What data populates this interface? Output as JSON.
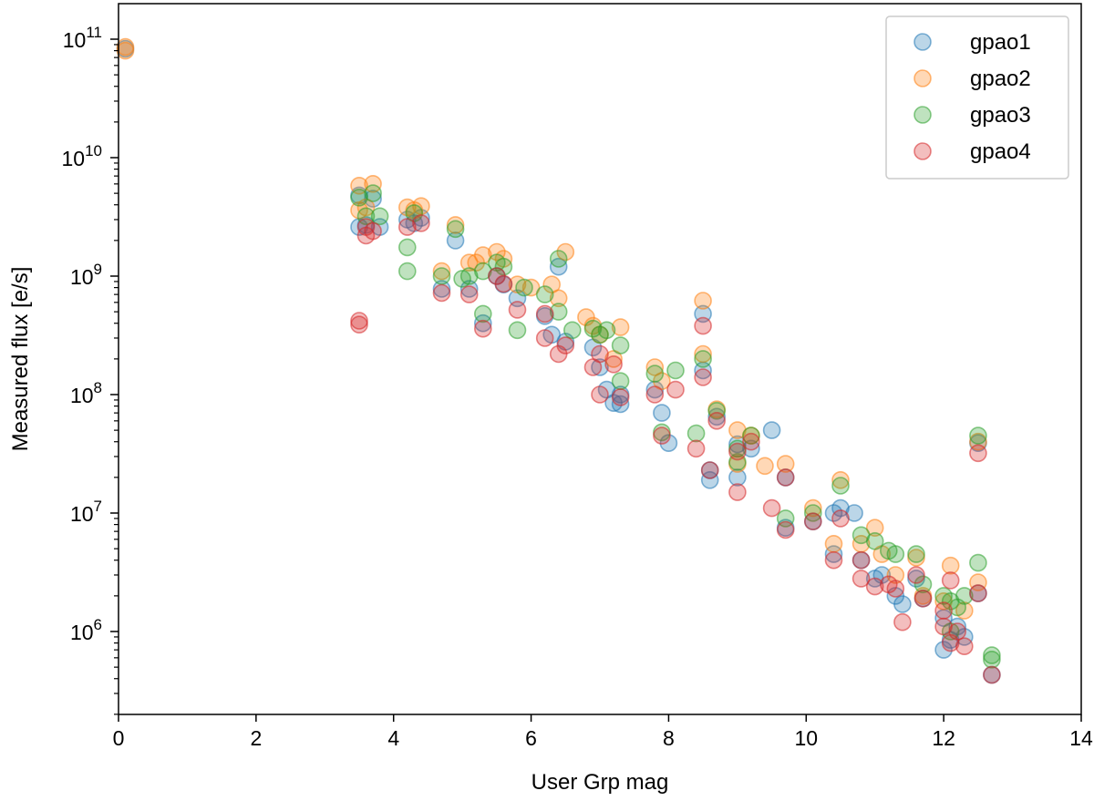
{
  "chart_data": {
    "type": "scatter",
    "title": "",
    "xlabel": "User Grp mag",
    "ylabel": "Measured flux [e/s]",
    "xlim": [
      0,
      14
    ],
    "ylim_log10": [
      5.3,
      11.3
    ],
    "yscale": "log",
    "legend_position": "top-right",
    "x_ticks": [
      {
        "value": 0,
        "label": "0"
      },
      {
        "value": 2,
        "label": "2"
      },
      {
        "value": 4,
        "label": "4"
      },
      {
        "value": 6,
        "label": "6"
      },
      {
        "value": 8,
        "label": "8"
      },
      {
        "value": 10,
        "label": "10"
      },
      {
        "value": 12,
        "label": "12"
      },
      {
        "value": 14,
        "label": "14"
      }
    ],
    "y_ticks": [
      {
        "log10": 6,
        "base": "10",
        "exp": "6"
      },
      {
        "log10": 7,
        "base": "10",
        "exp": "7"
      },
      {
        "log10": 8,
        "base": "10",
        "exp": "8"
      },
      {
        "log10": 9,
        "base": "10",
        "exp": "9"
      },
      {
        "log10": 10,
        "base": "10",
        "exp": "10"
      },
      {
        "log10": 11,
        "base": "10",
        "exp": "11"
      }
    ],
    "series": [
      {
        "name": "gpao1",
        "color": "#1f77b4",
        "points": [
          [
            0.1,
            83000000000.0
          ],
          [
            3.5,
            4800000000.0
          ],
          [
            3.5,
            2600000000.0
          ],
          [
            3.6,
            2700000000.0
          ],
          [
            3.7,
            4500000000.0
          ],
          [
            3.8,
            2600000000.0
          ],
          [
            4.2,
            3000000000.0
          ],
          [
            4.3,
            2800000000.0
          ],
          [
            4.4,
            3100000000.0
          ],
          [
            4.9,
            2000000000.0
          ],
          [
            4.7,
            780000000.0
          ],
          [
            5.1,
            780000000.0
          ],
          [
            5.3,
            400000000.0
          ],
          [
            5.5,
            1000000000.0
          ],
          [
            5.6,
            850000000.0
          ],
          [
            5.8,
            650000000.0
          ],
          [
            6.2,
            460000000.0
          ],
          [
            6.3,
            320000000.0
          ],
          [
            6.4,
            1200000000.0
          ],
          [
            6.5,
            280000000.0
          ],
          [
            6.9,
            250000000.0
          ],
          [
            7.0,
            170000000.0
          ],
          [
            7.1,
            110000000.0
          ],
          [
            7.2,
            85000000.0
          ],
          [
            7.3,
            83000000.0
          ],
          [
            7.3,
            100000000.0
          ],
          [
            7.8,
            110000000.0
          ],
          [
            7.9,
            70000000.0
          ],
          [
            8.0,
            39000000.0
          ],
          [
            8.5,
            480000000.0
          ],
          [
            8.5,
            160000000.0
          ],
          [
            8.6,
            19000000.0
          ],
          [
            8.6,
            23000000.0
          ],
          [
            8.7,
            65000000.0
          ],
          [
            9.0,
            20000000.0
          ],
          [
            9.0,
            38000000.0
          ],
          [
            9.2,
            35000000.0
          ],
          [
            9.5,
            50000000.0
          ],
          [
            9.7,
            7500000.0
          ],
          [
            9.7,
            20000000.0
          ],
          [
            10.1,
            8500000.0
          ],
          [
            10.4,
            10000000.0
          ],
          [
            10.5,
            11000000.0
          ],
          [
            10.4,
            4500000.0
          ],
          [
            10.7,
            10000000.0
          ],
          [
            10.8,
            4000000.0
          ],
          [
            11.0,
            2800000.0
          ],
          [
            11.1,
            3000000.0
          ],
          [
            11.3,
            2000000.0
          ],
          [
            11.4,
            1700000.0
          ],
          [
            11.6,
            2800000.0
          ],
          [
            11.7,
            1900000.0
          ],
          [
            12.0,
            700000.0
          ],
          [
            12.0,
            1300000.0
          ],
          [
            12.1,
            850000.0
          ],
          [
            12.2,
            1100000.0
          ],
          [
            12.3,
            900000.0
          ],
          [
            12.5,
            39000000.0
          ],
          [
            12.5,
            2100000.0
          ],
          [
            12.7,
            430000.0
          ]
        ]
      },
      {
        "name": "gpao2",
        "color": "#ff7f0e",
        "points": [
          [
            0.1,
            80000000000.0
          ],
          [
            0.1,
            86000000000.0
          ],
          [
            3.5,
            5800000000.0
          ],
          [
            3.6,
            3800000000.0
          ],
          [
            3.7,
            6000000000.0
          ],
          [
            3.5,
            3600000000.0
          ],
          [
            4.2,
            3800000000.0
          ],
          [
            4.3,
            3600000000.0
          ],
          [
            4.4,
            3900000000.0
          ],
          [
            4.9,
            2700000000.0
          ],
          [
            4.7,
            1100000000.0
          ],
          [
            5.1,
            1300000000.0
          ],
          [
            5.2,
            1300000000.0
          ],
          [
            5.3,
            1500000000.0
          ],
          [
            5.5,
            1600000000.0
          ],
          [
            5.6,
            1400000000.0
          ],
          [
            5.8,
            850000000.0
          ],
          [
            6.0,
            800000000.0
          ],
          [
            6.3,
            850000000.0
          ],
          [
            6.4,
            650000000.0
          ],
          [
            6.5,
            1600000000.0
          ],
          [
            6.8,
            450000000.0
          ],
          [
            6.9,
            380000000.0
          ],
          [
            7.0,
            320000000.0
          ],
          [
            7.3,
            370000000.0
          ],
          [
            7.2,
            200000000.0
          ],
          [
            7.8,
            170000000.0
          ],
          [
            7.9,
            130000000.0
          ],
          [
            8.5,
            620000000.0
          ],
          [
            8.5,
            220000000.0
          ],
          [
            8.7,
            75000000.0
          ],
          [
            9.0,
            50000000.0
          ],
          [
            9.0,
            26000000.0
          ],
          [
            9.2,
            45000000.0
          ],
          [
            9.4,
            25000000.0
          ],
          [
            9.7,
            26000000.0
          ],
          [
            10.1,
            11000000.0
          ],
          [
            10.4,
            5500000.0
          ],
          [
            10.5,
            19000000.0
          ],
          [
            10.8,
            5500000.0
          ],
          [
            11.0,
            7500000.0
          ],
          [
            11.1,
            4500000.0
          ],
          [
            11.3,
            3000000.0
          ],
          [
            11.6,
            4200000.0
          ],
          [
            11.7,
            2000000.0
          ],
          [
            12.1,
            3600000.0
          ],
          [
            12.0,
            1800000.0
          ],
          [
            12.3,
            1500000.0
          ],
          [
            12.5,
            2600000.0
          ],
          [
            12.5,
            40000000.0
          ]
        ]
      },
      {
        "name": "gpao3",
        "color": "#2ca02c",
        "points": [
          [
            3.5,
            4600000000.0
          ],
          [
            3.6,
            3200000000.0
          ],
          [
            3.7,
            5000000000.0
          ],
          [
            3.8,
            3200000000.0
          ],
          [
            4.2,
            1100000000.0
          ],
          [
            4.2,
            1750000000.0
          ],
          [
            4.3,
            3400000000.0
          ],
          [
            4.9,
            2500000000.0
          ],
          [
            4.7,
            1000000000.0
          ],
          [
            5.0,
            950000000.0
          ],
          [
            5.1,
            1000000000.0
          ],
          [
            5.3,
            480000000.0
          ],
          [
            5.3,
            1100000000.0
          ],
          [
            5.5,
            1300000000.0
          ],
          [
            5.6,
            1200000000.0
          ],
          [
            5.8,
            350000000.0
          ],
          [
            5.9,
            800000000.0
          ],
          [
            6.2,
            700000000.0
          ],
          [
            6.4,
            1400000000.0
          ],
          [
            6.4,
            500000000.0
          ],
          [
            6.6,
            350000000.0
          ],
          [
            6.9,
            360000000.0
          ],
          [
            7.0,
            320000000.0
          ],
          [
            7.1,
            350000000.0
          ],
          [
            7.3,
            260000000.0
          ],
          [
            7.3,
            130000000.0
          ],
          [
            7.8,
            150000000.0
          ],
          [
            7.9,
            48000000.0
          ],
          [
            8.1,
            160000000.0
          ],
          [
            8.4,
            47000000.0
          ],
          [
            8.5,
            200000000.0
          ],
          [
            8.7,
            73000000.0
          ],
          [
            9.0,
            35000000.0
          ],
          [
            9.2,
            45000000.0
          ],
          [
            9.0,
            27000000.0
          ],
          [
            9.7,
            9000000.0
          ],
          [
            10.1,
            10000000.0
          ],
          [
            10.5,
            17000000.0
          ],
          [
            10.8,
            6500000.0
          ],
          [
            11.0,
            5800000.0
          ],
          [
            11.2,
            4800000.0
          ],
          [
            11.3,
            4500000.0
          ],
          [
            11.6,
            4500000.0
          ],
          [
            11.7,
            2500000.0
          ],
          [
            12.0,
            2000000.0
          ],
          [
            12.1,
            1800000.0
          ],
          [
            12.2,
            1600000.0
          ],
          [
            12.1,
            1000000.0
          ],
          [
            12.3,
            2000000.0
          ],
          [
            12.5,
            3800000.0
          ],
          [
            12.5,
            45000000.0
          ],
          [
            12.7,
            630000.0
          ],
          [
            12.7,
            580000.0
          ]
        ]
      },
      {
        "name": "gpao4",
        "color": "#d62728",
        "points": [
          [
            3.5,
            420000000.0
          ],
          [
            3.5,
            390000000.0
          ],
          [
            3.6,
            2200000000.0
          ],
          [
            3.6,
            2600000000.0
          ],
          [
            3.7,
            2400000000.0
          ],
          [
            4.2,
            2600000000.0
          ],
          [
            4.4,
            2800000000.0
          ],
          [
            4.7,
            720000000.0
          ],
          [
            5.1,
            700000000.0
          ],
          [
            5.3,
            360000000.0
          ],
          [
            5.5,
            1000000000.0
          ],
          [
            5.6,
            860000000.0
          ],
          [
            5.8,
            520000000.0
          ],
          [
            6.2,
            300000000.0
          ],
          [
            6.2,
            480000000.0
          ],
          [
            6.4,
            220000000.0
          ],
          [
            6.5,
            260000000.0
          ],
          [
            6.9,
            170000000.0
          ],
          [
            7.0,
            220000000.0
          ],
          [
            7.0,
            100000000.0
          ],
          [
            7.2,
            180000000.0
          ],
          [
            7.3,
            95000000.0
          ],
          [
            7.8,
            100000000.0
          ],
          [
            7.9,
            45000000.0
          ],
          [
            8.1,
            110000000.0
          ],
          [
            8.4,
            35000000.0
          ],
          [
            8.5,
            140000000.0
          ],
          [
            8.5,
            380000000.0
          ],
          [
            8.6,
            23000000.0
          ],
          [
            8.7,
            60000000.0
          ],
          [
            9.0,
            15000000.0
          ],
          [
            9.0,
            33000000.0
          ],
          [
            9.2,
            40000000.0
          ],
          [
            9.5,
            11000000.0
          ],
          [
            9.7,
            7200000.0
          ],
          [
            9.7,
            20000000.0
          ],
          [
            10.1,
            8500000.0
          ],
          [
            10.4,
            4000000.0
          ],
          [
            10.5,
            9000000.0
          ],
          [
            10.8,
            2800000.0
          ],
          [
            10.8,
            4000000.0
          ],
          [
            11.0,
            2400000.0
          ],
          [
            11.2,
            2500000.0
          ],
          [
            11.3,
            2300000.0
          ],
          [
            11.4,
            1200000.0
          ],
          [
            11.6,
            3000000.0
          ],
          [
            11.7,
            1900000.0
          ],
          [
            12.0,
            1100000.0
          ],
          [
            12.0,
            1500000.0
          ],
          [
            12.1,
            2700000.0
          ],
          [
            12.1,
            800000.0
          ],
          [
            12.2,
            1000000.0
          ],
          [
            12.3,
            750000.0
          ],
          [
            12.5,
            32000000.0
          ],
          [
            12.5,
            2100000.0
          ],
          [
            12.7,
            430000.0
          ]
        ]
      }
    ]
  }
}
